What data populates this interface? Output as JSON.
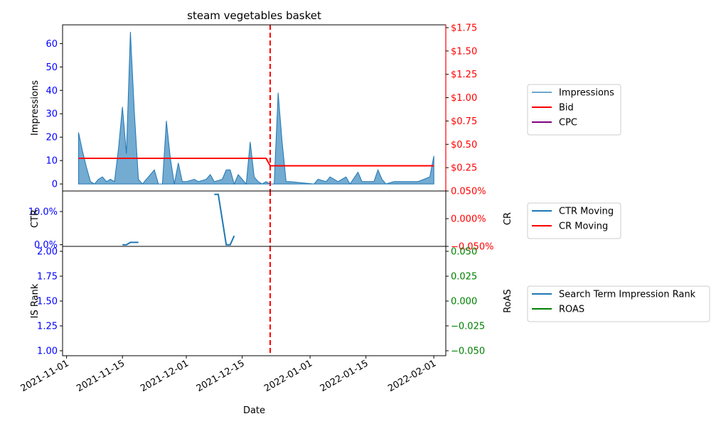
{
  "chart_data": [
    {
      "type": "area",
      "title": "steam vegetables basket",
      "xlabel": "",
      "ylabel": "Impressions",
      "y2label": "",
      "xlim": [
        "2021-10-31",
        "2022-02-04"
      ],
      "ylim": [
        -3,
        68
      ],
      "y2lim": [
        0.0,
        1.78
      ],
      "yticks": [
        0,
        10,
        20,
        30,
        40,
        50,
        60
      ],
      "y2ticks": [
        0.25,
        0.5,
        0.75,
        1.0,
        1.25,
        1.5,
        1.75
      ],
      "y2tick_labels": [
        "$0.25",
        "$0.50",
        "$0.75",
        "$1.00",
        "$1.25",
        "$1.50",
        "$1.75"
      ],
      "vline": "2021-12-22",
      "series": [
        {
          "name": "Impressions",
          "axis": "left",
          "color": "#1f77b4",
          "points": [
            [
              "2021-11-04",
              22
            ],
            [
              "2021-11-05",
              14
            ],
            [
              "2021-11-06",
              7
            ],
            [
              "2021-11-07",
              1
            ],
            [
              "2021-11-08",
              0
            ],
            [
              "2021-11-09",
              2
            ],
            [
              "2021-11-10",
              3
            ],
            [
              "2021-11-11",
              1
            ],
            [
              "2021-11-12",
              2
            ],
            [
              "2021-11-13",
              1
            ],
            [
              "2021-11-14",
              15
            ],
            [
              "2021-11-15",
              33
            ],
            [
              "2021-11-16",
              13
            ],
            [
              "2021-11-17",
              65
            ],
            [
              "2021-11-18",
              30
            ],
            [
              "2021-11-19",
              2
            ],
            [
              "2021-11-20",
              0
            ],
            [
              "2021-11-21",
              2
            ],
            [
              "2021-11-22",
              4
            ],
            [
              "2021-11-23",
              6
            ],
            [
              "2021-11-24",
              0
            ],
            [
              "2021-11-25",
              0
            ],
            [
              "2021-11-26",
              27
            ],
            [
              "2021-11-27",
              11
            ],
            [
              "2021-11-28",
              0
            ],
            [
              "2021-11-29",
              9
            ],
            [
              "2021-11-30",
              1
            ],
            [
              "2021-12-01",
              1
            ],
            [
              "2021-12-02",
              1.5
            ],
            [
              "2021-12-03",
              2
            ],
            [
              "2021-12-04",
              1
            ],
            [
              "2021-12-05",
              1.5
            ],
            [
              "2021-12-06",
              2
            ],
            [
              "2021-12-07",
              4
            ],
            [
              "2021-12-08",
              1
            ],
            [
              "2021-12-09",
              1.5
            ],
            [
              "2021-12-10",
              2
            ],
            [
              "2021-12-11",
              6
            ],
            [
              "2021-12-12",
              6
            ],
            [
              "2021-12-13",
              0
            ],
            [
              "2021-12-14",
              4
            ],
            [
              "2021-12-15",
              2
            ],
            [
              "2021-12-16",
              0
            ],
            [
              "2021-12-17",
              18
            ],
            [
              "2021-12-18",
              3
            ],
            [
              "2021-12-19",
              1
            ],
            [
              "2021-12-20",
              0
            ],
            [
              "2021-12-21",
              1
            ],
            [
              "2021-12-22",
              0
            ],
            [
              "2021-12-23",
              0
            ],
            [
              "2021-12-24",
              39
            ],
            [
              "2021-12-25",
              18
            ],
            [
              "2021-12-26",
              1
            ],
            [
              "2021-12-27",
              1
            ],
            [
              "2021-12-30",
              0.5
            ],
            [
              "2022-01-02",
              0
            ],
            [
              "2022-01-03",
              2
            ],
            [
              "2022-01-05",
              1
            ],
            [
              "2022-01-06",
              3
            ],
            [
              "2022-01-08",
              1
            ],
            [
              "2022-01-10",
              3
            ],
            [
              "2022-01-11",
              0
            ],
            [
              "2022-01-13",
              5
            ],
            [
              "2022-01-14",
              1
            ],
            [
              "2022-01-17",
              1
            ],
            [
              "2022-01-18",
              6
            ],
            [
              "2022-01-19",
              2
            ],
            [
              "2022-01-20",
              0
            ],
            [
              "2022-01-22",
              1
            ],
            [
              "2022-01-28",
              1
            ],
            [
              "2022-01-31",
              3
            ],
            [
              "2022-02-01",
              12
            ]
          ]
        },
        {
          "name": "Bid",
          "axis": "right",
          "color": "#ff0000",
          "points": [
            [
              "2021-11-04",
              0.35
            ],
            [
              "2021-12-21",
              0.35
            ],
            [
              "2021-12-22",
              0.27
            ],
            [
              "2022-02-01",
              0.27
            ]
          ]
        },
        {
          "name": "CPC",
          "axis": "right",
          "color": "#800080",
          "points": []
        }
      ],
      "legend": "right-outside"
    },
    {
      "type": "line",
      "xlabel": "",
      "ylabel": "CTR",
      "y2label": "CR",
      "xlim": [
        "2021-10-31",
        "2022-02-04"
      ],
      "ylim": [
        -0.005,
        0.162
      ],
      "y2lim": [
        -0.05,
        0.05
      ],
      "yticks": [
        0.0,
        0.1
      ],
      "ytick_labels": [
        "0.0%",
        "10.0%"
      ],
      "y2ticks": [
        -0.05,
        0.0,
        0.05
      ],
      "y2tick_labels": [
        "−0.050%",
        "0.000%",
        "0.050%"
      ],
      "vline": "2021-12-22",
      "series": [
        {
          "name": "CTR Moving",
          "axis": "left",
          "color": "#1f77b4",
          "segments": [
            [
              [
                "2021-11-15",
                0.0
              ],
              [
                "2021-11-16",
                0.0
              ],
              [
                "2021-11-17",
                0.007
              ],
              [
                "2021-11-19",
                0.007
              ]
            ],
            [
              [
                "2021-12-08",
                0.152
              ],
              [
                "2021-12-09",
                0.152
              ],
              [
                "2021-12-11",
                0.0
              ],
              [
                "2021-12-12",
                0.0
              ],
              [
                "2021-12-13",
                0.027
              ]
            ]
          ]
        },
        {
          "name": "CR Moving",
          "axis": "right",
          "color": "#ff0000",
          "segments": []
        }
      ],
      "legend": "right-outside"
    },
    {
      "type": "line",
      "xlabel": "Date",
      "ylabel": "IS Rank",
      "y2label": "RoAS",
      "xlim": [
        "2021-10-31",
        "2022-02-04"
      ],
      "ylim": [
        0.95,
        2.05
      ],
      "y2lim": [
        -0.055,
        0.055
      ],
      "yticks": [
        1.0,
        1.25,
        1.5,
        1.75,
        2.0
      ],
      "ytick_labels": [
        "1.00",
        "1.25",
        "1.50",
        "1.75",
        "2.00"
      ],
      "y2ticks": [
        -0.05,
        -0.025,
        0.0,
        0.025,
        0.05
      ],
      "y2tick_labels": [
        "−0.050",
        "−0.025",
        "0.000",
        "0.025",
        "0.050"
      ],
      "xticks": [
        "2021-11-01",
        "2021-11-15",
        "2021-12-01",
        "2021-12-15",
        "2022-01-01",
        "2022-01-15",
        "2022-02-01"
      ],
      "vline": "2021-12-22",
      "series": [
        {
          "name": "Search Term Impression Rank",
          "axis": "left",
          "color": "#1f77b4",
          "segments": []
        },
        {
          "name": "ROAS",
          "axis": "right",
          "color": "#008000",
          "segments": []
        }
      ],
      "legend": "right-outside"
    }
  ]
}
